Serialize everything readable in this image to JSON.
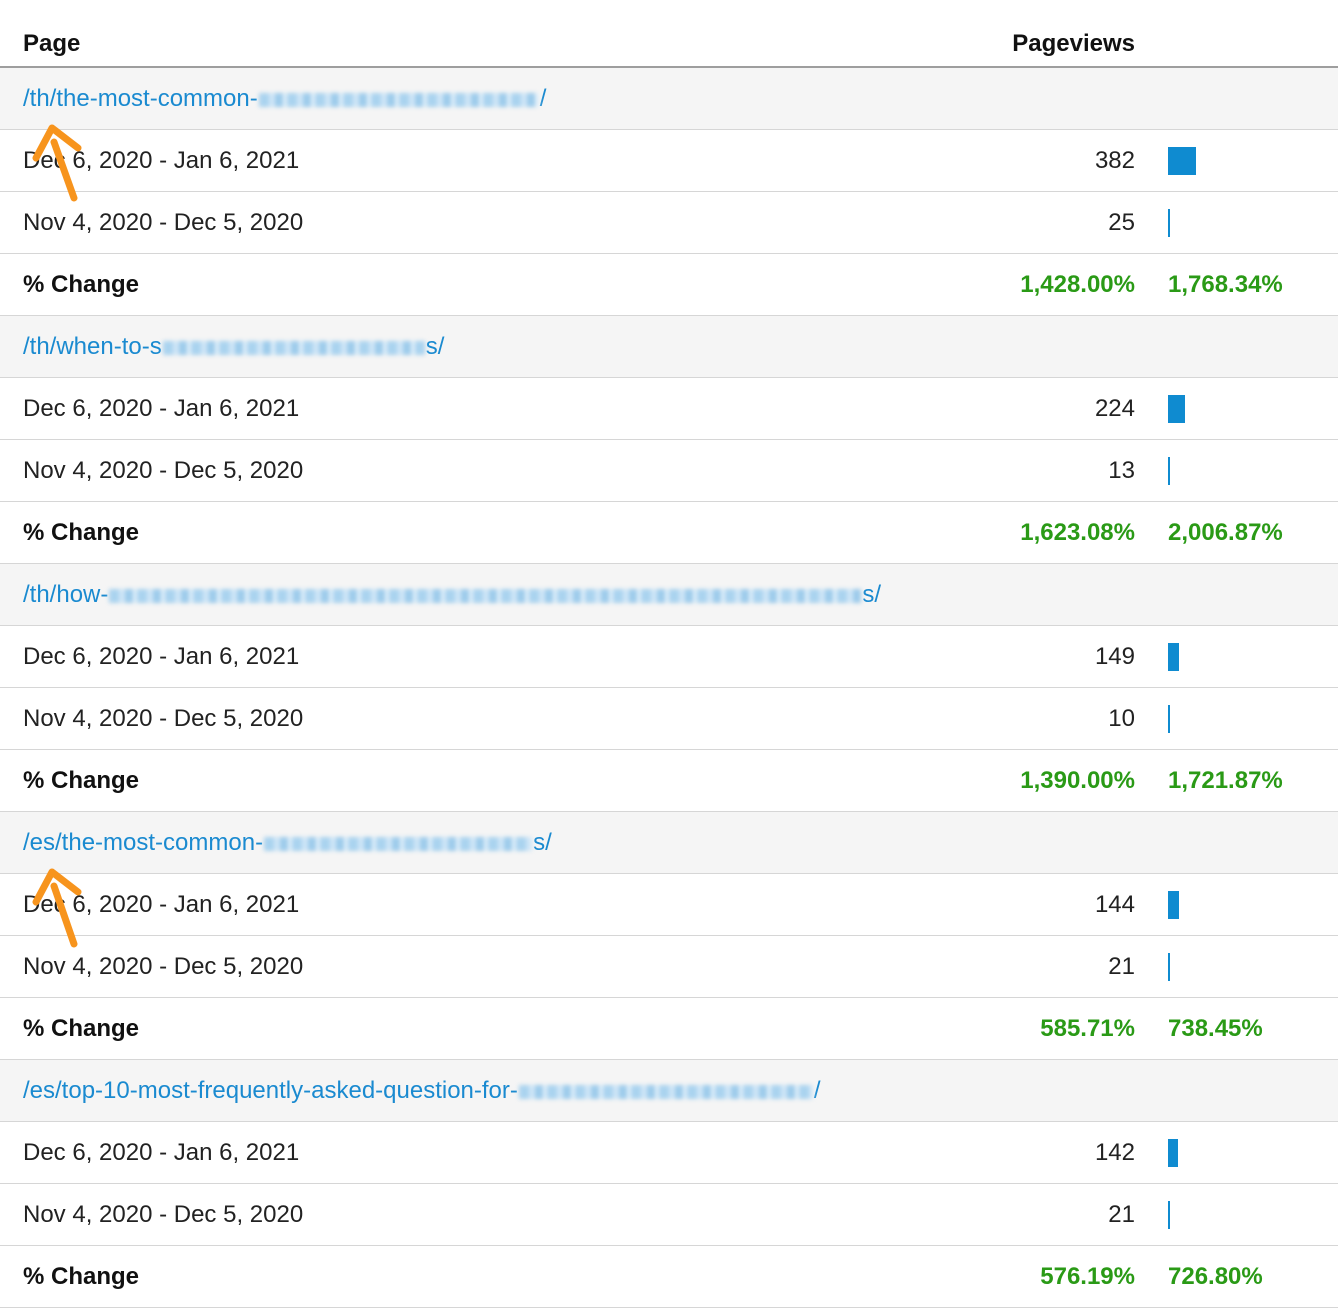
{
  "header": {
    "page": "Page",
    "pageviews": "Pageviews"
  },
  "groups": [
    {
      "prefix": "/th/the-most-common-",
      "suffix": "/",
      "current": {
        "range": "Dec 6, 2020 - Jan 6, 2021",
        "value": "382",
        "bar_fraction": 1.0
      },
      "previous": {
        "range": "Nov 4, 2020 - Dec 5, 2020",
        "value": "25",
        "bar_fraction": 0.07
      },
      "change": {
        "label": "% Change",
        "pct": "1,428.00%",
        "pct2": "1,768.34%"
      }
    },
    {
      "prefix": "/th/when-to-s",
      "suffix": "s/",
      "current": {
        "range": "Dec 6, 2020 - Jan 6, 2021",
        "value": "224",
        "bar_fraction": 0.59
      },
      "previous": {
        "range": "Nov 4, 2020 - Dec 5, 2020",
        "value": "13",
        "bar_fraction": 0.03
      },
      "change": {
        "label": "% Change",
        "pct": "1,623.08%",
        "pct2": "2,006.87%"
      }
    },
    {
      "prefix": "/th/how-",
      "suffix": "s/",
      "current": {
        "range": "Dec 6, 2020 - Jan 6, 2021",
        "value": "149",
        "bar_fraction": 0.39
      },
      "previous": {
        "range": "Nov 4, 2020 - Dec 5, 2020",
        "value": "10",
        "bar_fraction": 0.03
      },
      "change": {
        "label": "% Change",
        "pct": "1,390.00%",
        "pct2": "1,721.87%"
      }
    },
    {
      "prefix": "/es/the-most-common-",
      "suffix": "s/",
      "current": {
        "range": "Dec 6, 2020 - Jan 6, 2021",
        "value": "144",
        "bar_fraction": 0.38
      },
      "previous": {
        "range": "Nov 4, 2020 - Dec 5, 2020",
        "value": "21",
        "bar_fraction": 0.05
      },
      "change": {
        "label": "% Change",
        "pct": "585.71%",
        "pct2": "738.45%"
      }
    },
    {
      "prefix": "/es/top-10-most-frequently-asked-question-for-",
      "suffix": "/",
      "current": {
        "range": "Dec 6, 2020 - Jan 6, 2021",
        "value": "142",
        "bar_fraction": 0.37
      },
      "previous": {
        "range": "Nov 4, 2020 - Dec 5, 2020",
        "value": "21",
        "bar_fraction": 0.05
      },
      "change": {
        "label": "% Change",
        "pct": "576.19%",
        "pct2": "726.80%"
      }
    }
  ],
  "colors": {
    "link": "#1a8ad0",
    "bar": "#0f8bd0",
    "positive": "#2a9a16",
    "annotation_arrow": "#f7941d"
  },
  "annotations": [
    {
      "icon": "arrow-up-left-icon",
      "group": 0
    },
    {
      "icon": "arrow-up-left-icon",
      "group": 3
    }
  ]
}
